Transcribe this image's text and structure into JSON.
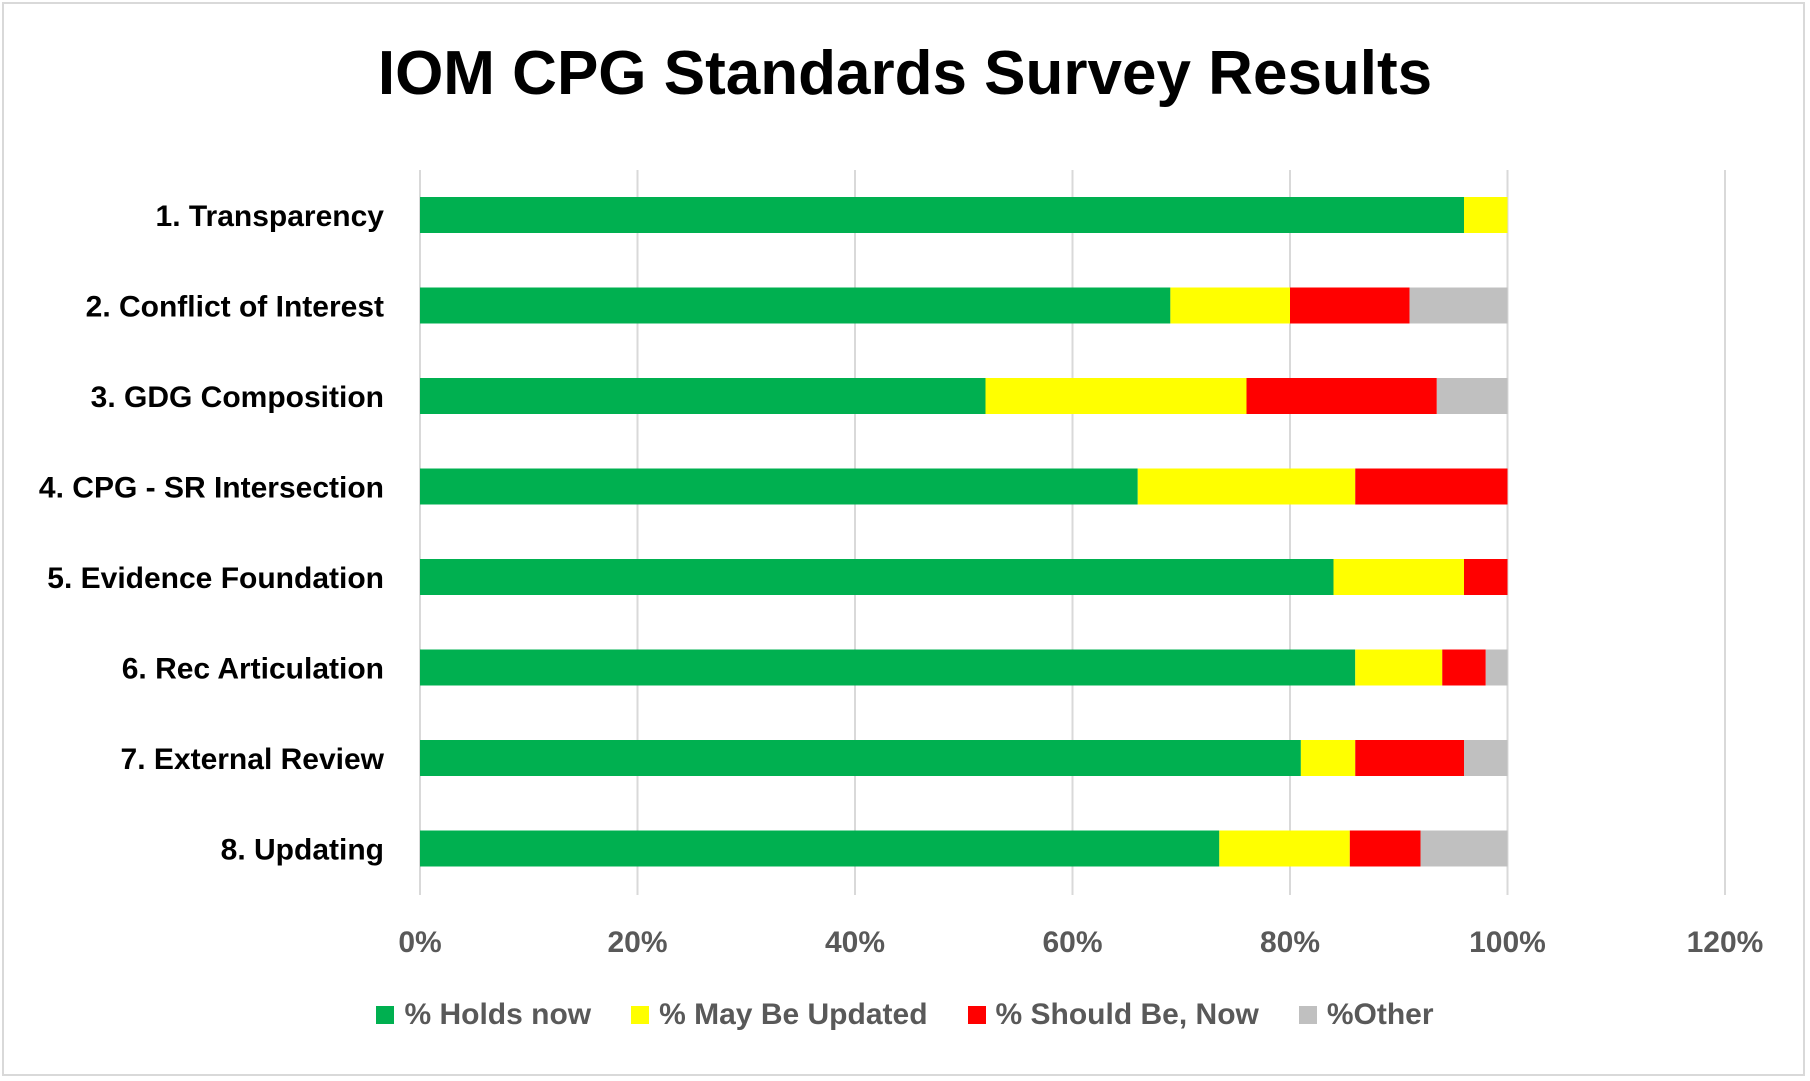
{
  "chart_data": {
    "type": "bar",
    "orientation": "horizontal",
    "stacked": true,
    "title": "IOM CPG Standards Survey Results",
    "xlabel": "",
    "ylabel": "",
    "xlim": [
      0,
      120
    ],
    "x_ticks": [
      "0%",
      "20%",
      "40%",
      "60%",
      "80%",
      "100%",
      "120%"
    ],
    "grid": true,
    "legend_position": "bottom",
    "categories": [
      "1. Transparency",
      "2. Conflict of Interest",
      "3. GDG Composition",
      "4. CPG - SR Intersection",
      "5. Evidence Foundation",
      "6. Rec Articulation",
      "7. External Review",
      "8. Updating"
    ],
    "series": [
      {
        "name": "% Holds now",
        "color": "#00b050",
        "values": [
          96,
          69,
          52,
          66,
          84,
          86,
          81,
          73.5
        ]
      },
      {
        "name": "% May Be Updated",
        "color": "#ffff00",
        "values": [
          4,
          11,
          24,
          20,
          12,
          8,
          5,
          12
        ]
      },
      {
        "name": "% Should Be, Now",
        "color": "#ff0000",
        "values": [
          0,
          11,
          17.5,
          14,
          4,
          4,
          10,
          6.5
        ]
      },
      {
        "name": "%Other",
        "color": "#c0c0c0",
        "values": [
          0,
          9,
          6.5,
          0,
          0,
          2,
          4,
          8
        ]
      }
    ]
  }
}
